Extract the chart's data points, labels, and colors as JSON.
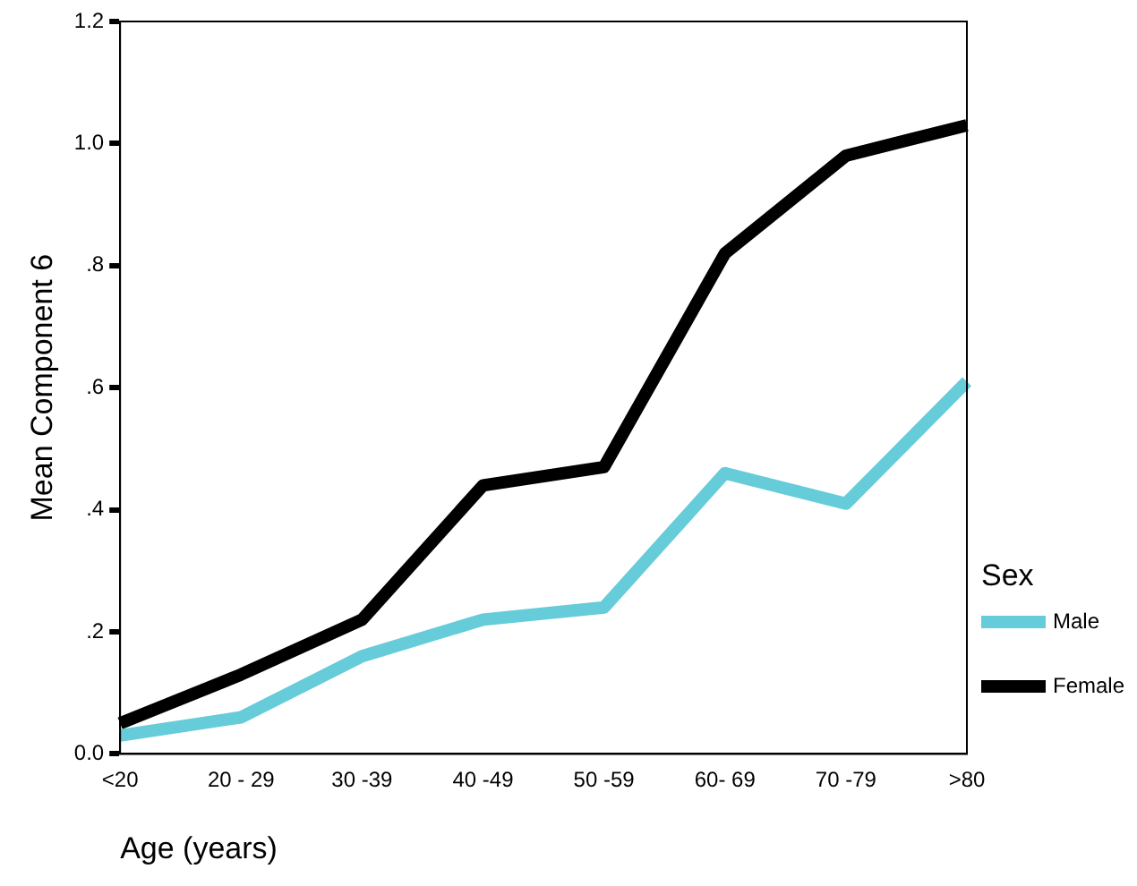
{
  "chart_data": {
    "type": "line",
    "xlabel": "Age (years)",
    "ylabel": "Mean Component 6",
    "legend_title": "Sex",
    "legend": "right",
    "grid": false,
    "marker": "none",
    "line_style": "solid",
    "categories": [
      "<20",
      "20 - 29",
      "30 -39",
      "40 -49",
      "50 -59",
      "60- 69",
      "70 -79",
      ">80"
    ],
    "ylim": [
      0,
      1.2
    ],
    "yticks": [
      {
        "value": 0,
        "label": "0.0"
      },
      {
        "value": 0.2,
        "label": ".2"
      },
      {
        "value": 0.4,
        "label": ".4"
      },
      {
        "value": 0.6,
        "label": ".6"
      },
      {
        "value": 0.8,
        "label": ".8"
      },
      {
        "value": 1,
        "label": "1.0"
      },
      {
        "value": 1.2,
        "label": "1.2"
      }
    ],
    "series": [
      {
        "name": "Male",
        "color": "#66ccd9",
        "values": [
          0.03,
          0.06,
          0.16,
          0.22,
          0.24,
          0.46,
          0.41,
          0.61
        ]
      },
      {
        "name": "Female",
        "color": "#000000",
        "values": [
          0.05,
          0.13,
          0.22,
          0.44,
          0.47,
          0.82,
          0.98,
          1.03
        ]
      }
    ]
  }
}
